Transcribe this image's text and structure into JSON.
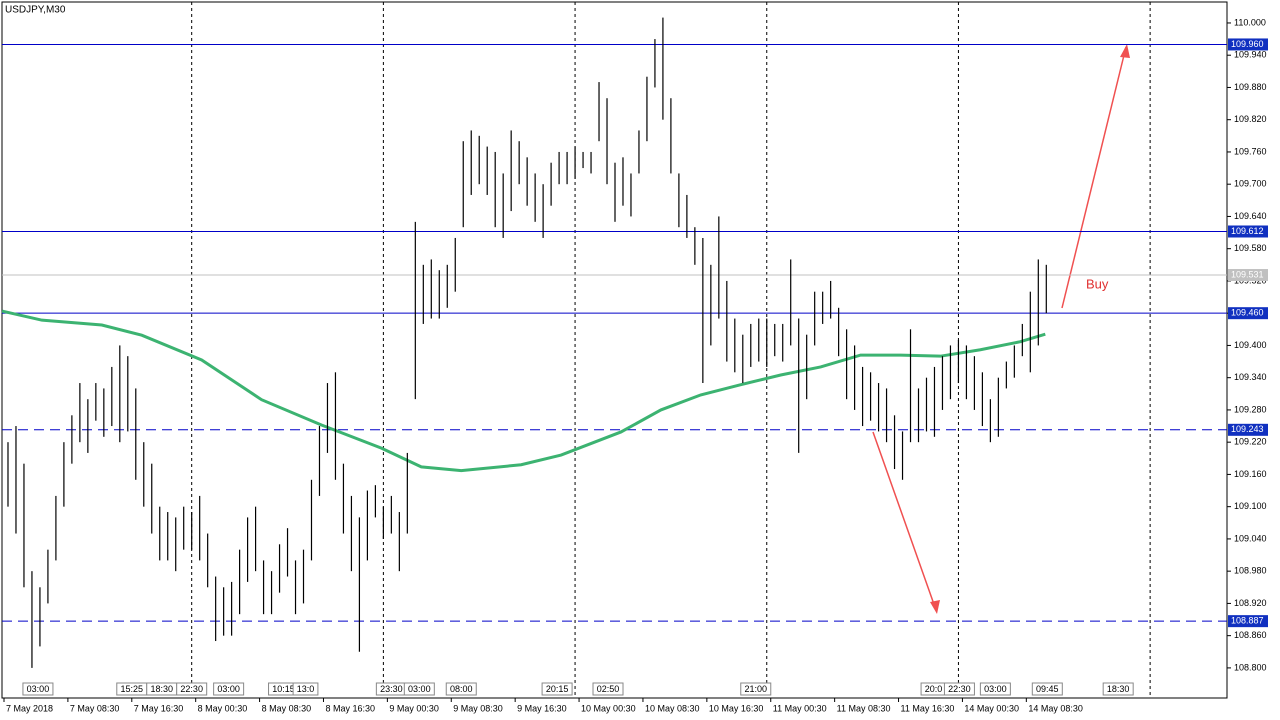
{
  "chart_data": {
    "type": "hlbar",
    "title": "USDJPY,M30",
    "color": "#000000",
    "xlim": [
      -0.75,
      152.625
    ],
    "ylim": [
      108.744,
      110.039
    ],
    "yticks": [
      {
        "value": 108.8,
        "label": "108.800"
      },
      {
        "value": 108.86,
        "label": "108.860"
      },
      {
        "value": 108.92,
        "label": "108.920"
      },
      {
        "value": 108.98,
        "label": "108.980"
      },
      {
        "value": 109.04,
        "label": "109.040"
      },
      {
        "value": 109.1,
        "label": "109.100"
      },
      {
        "value": 109.16,
        "label": "109.160"
      },
      {
        "value": 109.22,
        "label": "109.220"
      },
      {
        "value": 109.28,
        "label": "109.280"
      },
      {
        "value": 109.34,
        "label": "109.340"
      },
      {
        "value": 109.4,
        "label": "109.400"
      },
      {
        "value": 109.46,
        "label": "109.460"
      },
      {
        "value": 109.52,
        "label": "109.520"
      },
      {
        "value": 109.58,
        "label": "109.580"
      },
      {
        "value": 109.64,
        "label": "109.640"
      },
      {
        "value": 109.7,
        "label": "109.700"
      },
      {
        "value": 109.76,
        "label": "109.760"
      },
      {
        "value": 109.82,
        "label": "109.820"
      },
      {
        "value": 109.88,
        "label": "109.880"
      },
      {
        "value": 109.94,
        "label": "109.940"
      },
      {
        "value": 110.0,
        "label": "110.000"
      }
    ],
    "xticks": [
      {
        "value": -0.5,
        "label": "7 May 2018"
      },
      {
        "value": 7.5,
        "label": "7 May 08:30"
      },
      {
        "value": 15.5,
        "label": "7 May 16:30"
      },
      {
        "value": 23.5,
        "label": "8 May 00:30"
      },
      {
        "value": 31.5,
        "label": "8 May 08:30"
      },
      {
        "value": 39.5,
        "label": "8 May 16:30"
      },
      {
        "value": 47.5,
        "label": "9 May 00:30"
      },
      {
        "value": 55.5,
        "label": "9 May 08:30"
      },
      {
        "value": 63.5,
        "label": "9 May 16:30"
      },
      {
        "value": 71.5,
        "label": "10 May 00:30"
      },
      {
        "value": 79.5,
        "label": "10 May 08:30"
      },
      {
        "value": 87.5,
        "label": "10 May 16:30"
      },
      {
        "value": 95.5,
        "label": "11 May 00:30"
      },
      {
        "value": 103.5,
        "label": "11 May 08:30"
      },
      {
        "value": 111.5,
        "label": "11 May 16:30"
      },
      {
        "value": 119.5,
        "label": "14 May 00:30"
      },
      {
        "value": 127.5,
        "label": "14 May 08:30"
      }
    ],
    "xgrid": [
      23,
      47,
      71,
      95,
      119,
      143
    ],
    "time_markers": [
      {
        "value": 3.75,
        "label": "03:00"
      },
      {
        "value": 15.5,
        "label": "15:25"
      },
      {
        "value": 19.25,
        "label": "18:30"
      },
      {
        "value": 23,
        "label": "22:30"
      },
      {
        "value": 27.625,
        "label": "03:00"
      },
      {
        "value": 34.5,
        "label": "10:15"
      },
      {
        "value": 37.25,
        "label": "13:0"
      },
      {
        "value": 48,
        "label": "23:30"
      },
      {
        "value": 51.5,
        "label": "03:00"
      },
      {
        "value": 56.75,
        "label": "08:00"
      },
      {
        "value": 68.75,
        "label": "20:15"
      },
      {
        "value": 75.125,
        "label": "02:50"
      },
      {
        "value": 93.625,
        "label": "21:00"
      },
      {
        "value": 115.875,
        "label": "20:0"
      },
      {
        "value": 119.125,
        "label": "22:30"
      },
      {
        "value": 123.625,
        "label": "03:00"
      },
      {
        "value": 130.125,
        "label": "09:45"
      },
      {
        "value": 139,
        "label": "18:30"
      }
    ],
    "x": [
      0,
      1,
      2,
      3,
      4,
      5,
      6,
      7,
      8,
      9,
      10,
      11,
      12,
      13,
      14,
      15,
      16,
      17,
      18,
      19,
      20,
      21,
      22,
      23,
      24,
      25,
      26,
      27,
      28,
      29,
      30,
      31,
      32,
      33,
      34,
      35,
      36,
      37,
      38,
      39,
      40,
      41,
      42,
      43,
      44,
      45,
      46,
      47,
      48,
      49,
      50,
      51,
      52,
      53,
      54,
      55,
      56,
      57,
      58,
      59,
      60,
      61,
      62,
      63,
      64,
      65,
      66,
      67,
      68,
      69,
      70,
      71,
      72,
      73,
      74,
      75,
      76,
      77,
      78,
      79,
      80,
      81,
      82,
      83,
      84,
      85,
      86,
      87,
      88,
      89,
      90,
      91,
      92,
      93,
      94,
      95,
      96,
      97,
      98,
      99,
      100,
      101,
      102,
      103,
      104,
      105,
      106,
      107,
      108,
      109,
      110,
      111,
      112,
      113,
      114,
      115,
      116,
      117,
      118,
      119,
      120,
      121,
      122,
      123,
      124,
      125,
      126,
      127,
      128,
      129,
      130
    ],
    "high": [
      109.22,
      109.25,
      109.18,
      108.98,
      108.95,
      109.02,
      109.12,
      109.22,
      109.27,
      109.33,
      109.3,
      109.33,
      109.32,
      109.36,
      109.4,
      109.38,
      109.32,
      109.22,
      109.18,
      109.1,
      109.09,
      109.08,
      109.1,
      109.09,
      109.12,
      109.05,
      108.97,
      108.95,
      108.96,
      109.02,
      109.08,
      109.1,
      109.0,
      108.98,
      109.03,
      109.06,
      109.0,
      109.02,
      109.15,
      109.25,
      109.33,
      109.35,
      109.18,
      109.12,
      109.08,
      109.13,
      109.14,
      109.1,
      109.12,
      109.09,
      109.2,
      109.63,
      109.55,
      109.56,
      109.54,
      109.55,
      109.6,
      109.78,
      109.8,
      109.79,
      109.77,
      109.76,
      109.72,
      109.8,
      109.78,
      109.75,
      109.72,
      109.7,
      109.74,
      109.76,
      109.76,
      109.77,
      109.76,
      109.76,
      109.89,
      109.86,
      109.74,
      109.75,
      109.72,
      109.8,
      109.9,
      109.97,
      110.01,
      109.86,
      109.72,
      109.68,
      109.62,
      109.6,
      109.55,
      109.64,
      109.52,
      109.45,
      109.42,
      109.44,
      109.45,
      109.45,
      109.44,
      109.44,
      109.56,
      109.45,
      109.42,
      109.5,
      109.5,
      109.52,
      109.47,
      109.43,
      109.4,
      109.36,
      109.35,
      109.33,
      109.32,
      109.27,
      109.24,
      109.43,
      109.32,
      109.34,
      109.36,
      109.38,
      109.4,
      109.41,
      109.4,
      109.38,
      109.35,
      109.3,
      109.34,
      109.37,
      109.4,
      109.44,
      109.5,
      109.56,
      109.55
    ],
    "low": [
      109.1,
      109.05,
      108.95,
      108.8,
      108.84,
      108.92,
      109.0,
      109.1,
      109.18,
      109.22,
      109.2,
      109.26,
      109.23,
      109.25,
      109.22,
      109.24,
      109.15,
      109.1,
      109.05,
      109.0,
      109.0,
      108.98,
      109.02,
      109.02,
      109.0,
      108.95,
      108.85,
      108.86,
      108.86,
      108.9,
      108.96,
      108.98,
      108.9,
      108.9,
      108.94,
      108.97,
      108.9,
      108.92,
      109.0,
      109.12,
      109.2,
      109.15,
      109.05,
      108.98,
      108.83,
      109.0,
      109.08,
      109.04,
      109.05,
      108.98,
      109.05,
      109.3,
      109.44,
      109.45,
      109.45,
      109.47,
      109.5,
      109.62,
      109.68,
      109.7,
      109.68,
      109.62,
      109.6,
      109.65,
      109.7,
      109.66,
      109.63,
      109.6,
      109.66,
      109.7,
      109.7,
      109.71,
      109.73,
      109.72,
      109.78,
      109.7,
      109.63,
      109.66,
      109.64,
      109.72,
      109.78,
      109.88,
      109.82,
      109.72,
      109.62,
      109.6,
      109.55,
      109.33,
      109.4,
      109.45,
      109.37,
      109.35,
      109.33,
      109.36,
      109.37,
      109.36,
      109.38,
      109.37,
      109.4,
      109.2,
      109.3,
      109.4,
      109.44,
      109.45,
      109.38,
      109.3,
      109.28,
      109.25,
      109.26,
      109.24,
      109.22,
      109.17,
      109.15,
      109.22,
      109.22,
      109.24,
      109.23,
      109.28,
      109.3,
      109.33,
      109.3,
      109.28,
      109.25,
      109.22,
      109.23,
      109.32,
      109.34,
      109.38,
      109.35,
      109.4,
      109.46
    ],
    "ma": {
      "color": "#3cb371",
      "x": [
        -0.75,
        4.25,
        11.75,
        16.75,
        24.25,
        31.75,
        39.25,
        46.75,
        51.75,
        56.75,
        64.25,
        69.25,
        76.75,
        81.75,
        86.75,
        91.75,
        96.75,
        101.75,
        106.75,
        111.75,
        116.75,
        121.75,
        126.75,
        129.875
      ],
      "values": [
        109.464,
        109.447,
        109.438,
        109.419,
        109.373,
        109.299,
        109.252,
        109.209,
        109.174,
        109.167,
        109.178,
        109.196,
        109.239,
        109.28,
        109.308,
        109.327,
        109.345,
        109.36,
        109.382,
        109.382,
        109.38,
        109.392,
        109.407,
        109.421
      ]
    },
    "levels": [
      {
        "value": 109.96,
        "label": "109.960",
        "dashed": false
      },
      {
        "value": 109.612,
        "label": "109.612",
        "dashed": false
      },
      {
        "value": 109.46,
        "label": "109.460",
        "dashed": false
      },
      {
        "value": 109.243,
        "label": "109.243",
        "dashed": true
      },
      {
        "value": 108.887,
        "label": "108.887",
        "dashed": true
      }
    ],
    "price_line": {
      "value": 109.531,
      "label": "109.531"
    },
    "annotation": "Buy"
  }
}
